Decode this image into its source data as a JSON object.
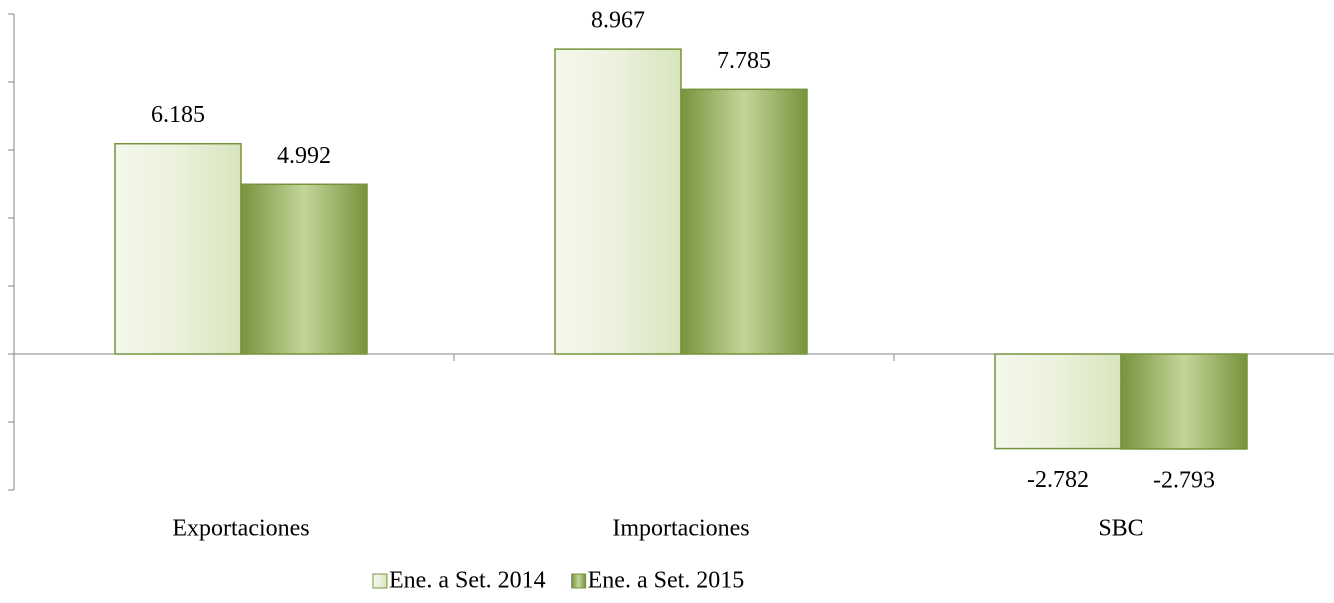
{
  "chart_data": {
    "type": "bar",
    "categories": [
      "Exportaciones",
      "Importaciones",
      "SBC"
    ],
    "series": [
      {
        "name": "Ene. a Set. 2014",
        "color": "#d7e4bd",
        "values": [
          6185,
          8967,
          -2782
        ],
        "value_labels": [
          "6.185",
          "8.967",
          "-2.782"
        ]
      },
      {
        "name": "Ene. a Set. 2015",
        "color": "#77933c",
        "values": [
          4992,
          7785,
          -2793
        ],
        "value_labels": [
          "4.992",
          "7.785",
          "-2.793"
        ]
      }
    ],
    "ylim": [
      -4000,
      10000
    ],
    "yticks": [
      -4000,
      -2000,
      0,
      2000,
      4000,
      6000,
      8000,
      10000
    ],
    "legend": "bottom"
  }
}
